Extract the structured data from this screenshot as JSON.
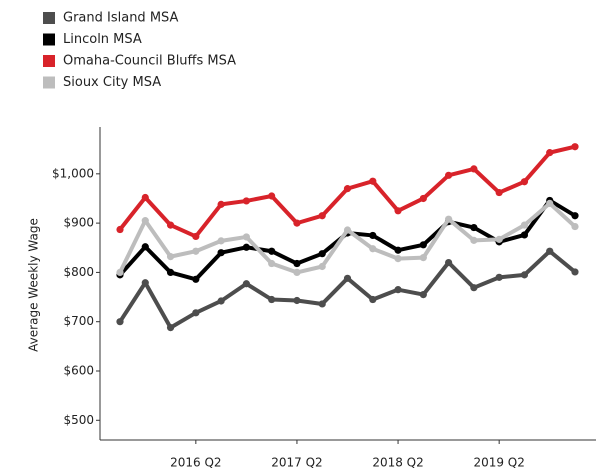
{
  "chart_data": {
    "type": "line",
    "y_label": "Average Weekly Wage",
    "categories": [
      null,
      null,
      null,
      "2016 Q2",
      null,
      null,
      null,
      "2017 Q2",
      null,
      null,
      null,
      "2018 Q2",
      null,
      null,
      null,
      "2019 Q2",
      null,
      null,
      null
    ],
    "series": [
      {
        "name": "Grand Island MSA",
        "color": "#4d4d4d",
        "values": [
          700,
          779,
          688,
          718,
          742,
          777,
          745,
          743,
          736,
          788,
          745,
          765,
          755,
          820,
          769,
          790,
          795,
          843,
          801
        ]
      },
      {
        "name": "Lincoln MSA",
        "color": "#000000",
        "values": [
          795,
          852,
          800,
          786,
          840,
          851,
          843,
          818,
          838,
          880,
          875,
          845,
          856,
          903,
          891,
          862,
          876,
          946,
          915
        ]
      },
      {
        "name": "Omaha-Council Bluffs MSA",
        "color": "#d8232a",
        "values": [
          887,
          952,
          896,
          873,
          938,
          945,
          955,
          900,
          915,
          970,
          985,
          925,
          950,
          997,
          1010,
          962,
          984,
          1043,
          1055
        ]
      },
      {
        "name": "Sioux City MSA",
        "color": "#bdbdbd",
        "values": [
          800,
          905,
          832,
          843,
          864,
          872,
          818,
          800,
          812,
          886,
          848,
          828,
          830,
          908,
          865,
          867,
          896,
          940,
          893
        ]
      }
    ],
    "ylim": [
      460,
      1095
    ],
    "yticks": [
      {
        "value": 500,
        "label": "$500"
      },
      {
        "value": 600,
        "label": "$600"
      },
      {
        "value": 700,
        "label": "$700"
      },
      {
        "value": 800,
        "label": "$800"
      },
      {
        "value": 900,
        "label": "$900"
      },
      {
        "value": 1000,
        "label": "$1,000"
      }
    ],
    "grid": false
  }
}
